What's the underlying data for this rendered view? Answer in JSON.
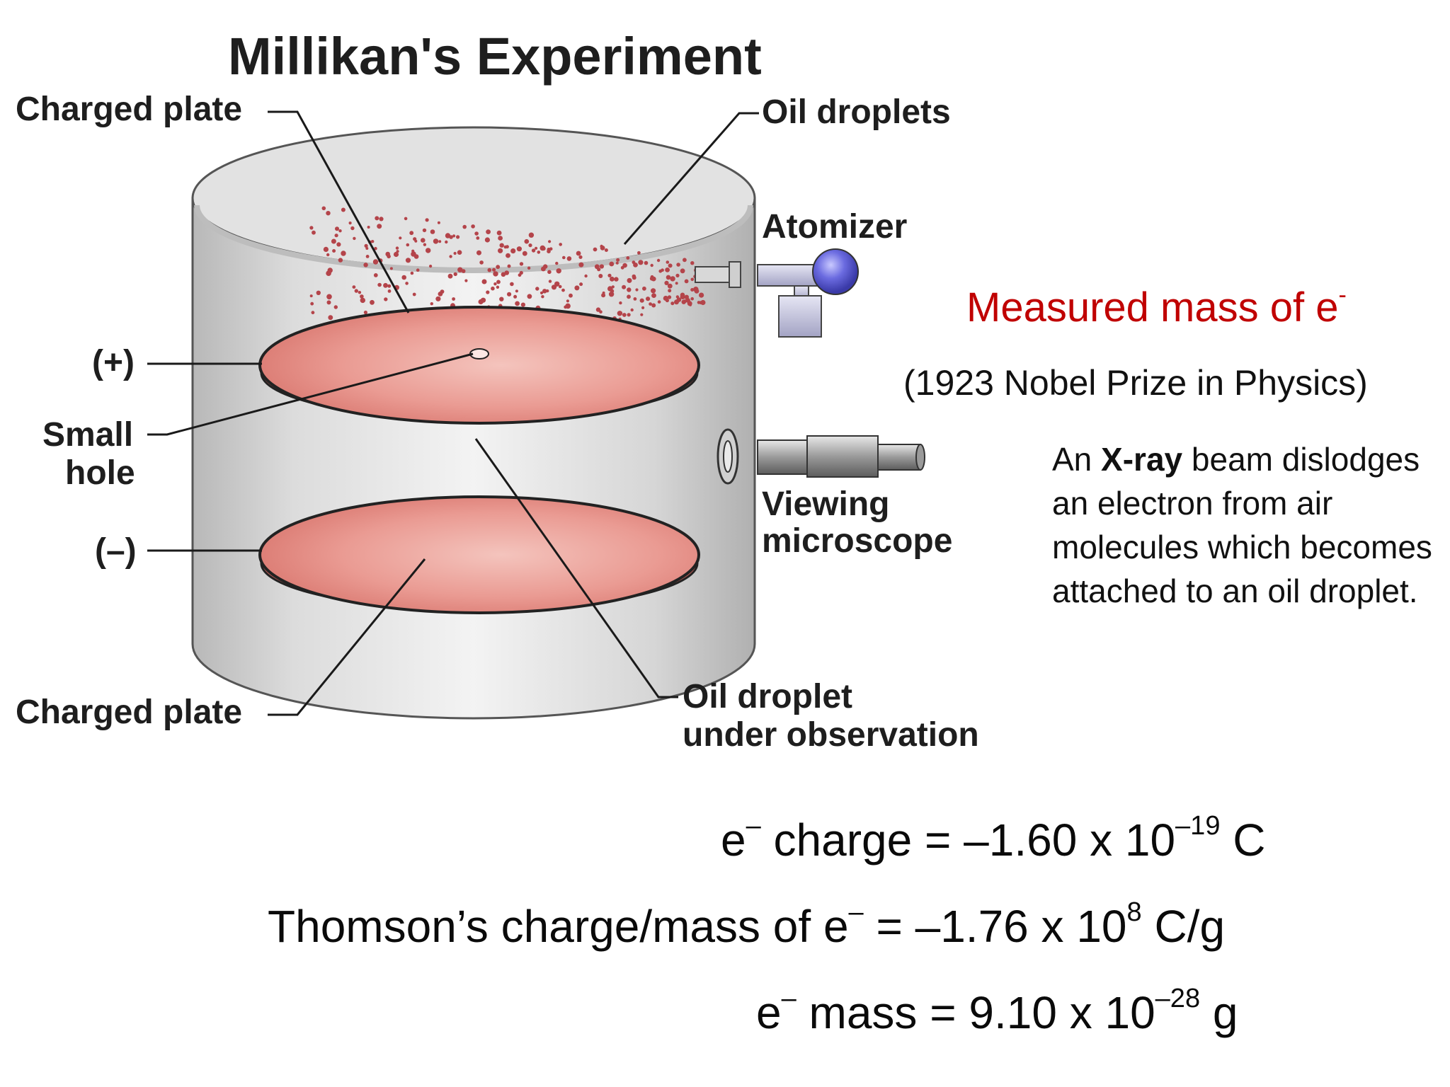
{
  "diagram": {
    "title": "Millikan's Experiment",
    "labels": {
      "charged_plate_top": "Charged plate",
      "oil_droplets": "Oil droplets",
      "atomizer": "Atomizer",
      "plus": "(+)",
      "small_hole_1": "Small",
      "small_hole_2": "hole",
      "minus": "(–)",
      "viewing_1": "Viewing",
      "viewing_2": "microscope",
      "charged_plate_bottom": "Charged plate",
      "observed_1": "Oil droplet",
      "observed_2": "under observation"
    },
    "colors": {
      "plate": "#e88a86",
      "droplet": "#b4444a",
      "cylinder": "#c9c9c9",
      "atomizer_bulb": "#5a5ad6"
    }
  },
  "side": {
    "measured": "Measured mass of e",
    "measured_sup": "-",
    "nobel": "(1923 Nobel Prize in Physics)",
    "xray_pre": "An ",
    "xray_bold": "X-ray",
    "xray_post": " beam dislodges an electron from air molecules which becomes attached to an oil droplet.",
    "accent_color": "#c00000"
  },
  "equations": {
    "charge": {
      "e": "e",
      "e_sup": "–",
      "text": " charge = –1.60 x 10",
      "exp": "–19",
      "unit": " C"
    },
    "thomson": {
      "text": "Thomson’s charge/mass of e",
      "e_sup": "–",
      "text2": " = –1.76 x 10",
      "exp": "8",
      "unit": " C/g"
    },
    "mass": {
      "e": "e",
      "e_sup": "–",
      "text": " mass = 9.10 x 10",
      "exp": "–28",
      "unit": " g"
    }
  }
}
